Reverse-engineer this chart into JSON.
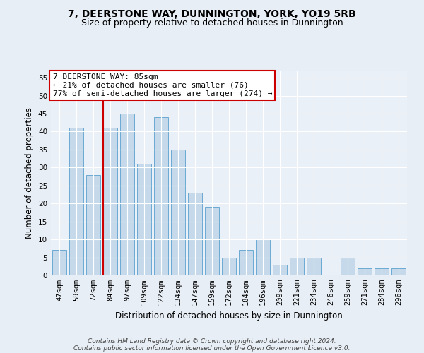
{
  "title": "7, DEERSTONE WAY, DUNNINGTON, YORK, YO19 5RB",
  "subtitle": "Size of property relative to detached houses in Dunnington",
  "xlabel": "Distribution of detached houses by size in Dunnington",
  "ylabel": "Number of detached properties",
  "categories": [
    "47sqm",
    "59sqm",
    "72sqm",
    "84sqm",
    "97sqm",
    "109sqm",
    "122sqm",
    "134sqm",
    "147sqm",
    "159sqm",
    "172sqm",
    "184sqm",
    "196sqm",
    "209sqm",
    "221sqm",
    "234sqm",
    "246sqm",
    "259sqm",
    "271sqm",
    "284sqm",
    "296sqm"
  ],
  "values": [
    7,
    41,
    28,
    41,
    45,
    31,
    44,
    35,
    23,
    19,
    5,
    7,
    10,
    3,
    5,
    5,
    0,
    5,
    2,
    2,
    2
  ],
  "bar_color": "#c5d9ea",
  "bar_edge_color": "#6aaad4",
  "highlight_line_color": "#cc0000",
  "annotation_text": "7 DEERSTONE WAY: 85sqm\n← 21% of detached houses are smaller (76)\n77% of semi-detached houses are larger (274) →",
  "annotation_box_color": "#ffffff",
  "annotation_box_edge_color": "#cc0000",
  "ylim": [
    0,
    57
  ],
  "yticks": [
    0,
    5,
    10,
    15,
    20,
    25,
    30,
    35,
    40,
    45,
    50,
    55
  ],
  "footer1": "Contains HM Land Registry data © Crown copyright and database right 2024.",
  "footer2": "Contains public sector information licensed under the Open Government Licence v3.0.",
  "bg_color": "#e8eef5",
  "plot_bg_color": "#eaf0f7",
  "grid_color": "#ffffff",
  "title_fontsize": 10,
  "subtitle_fontsize": 9,
  "axis_label_fontsize": 8.5,
  "tick_fontsize": 7.5,
  "annotation_fontsize": 8,
  "footer_fontsize": 6.5
}
